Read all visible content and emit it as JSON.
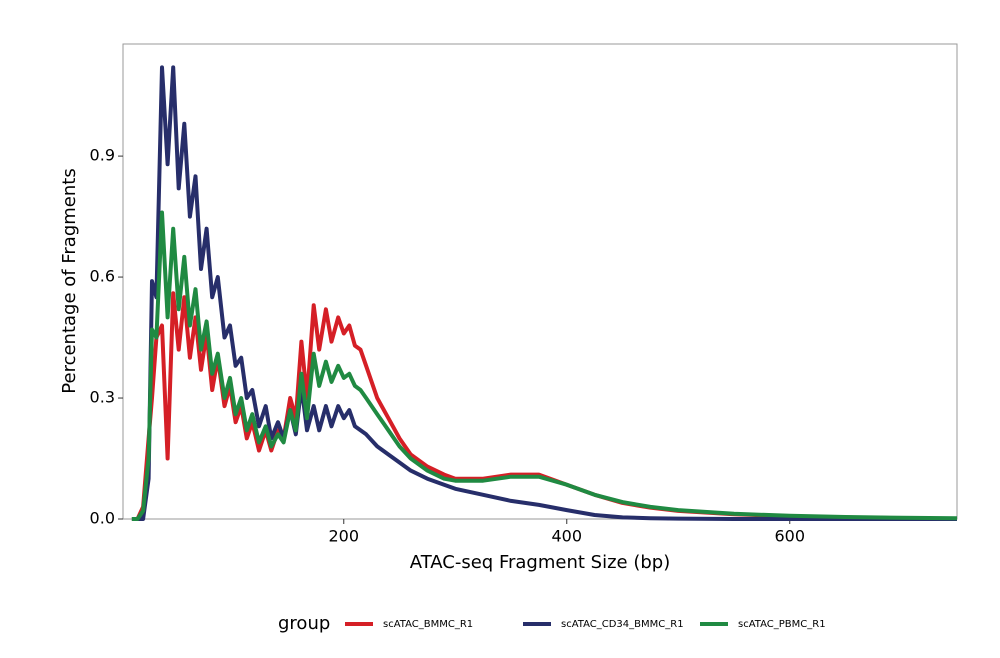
{
  "chart_data": {
    "type": "line",
    "xlabel": "ATAC-seq Fragment Size (bp)",
    "ylabel": "Percentage of Fragments",
    "legend_title": "group",
    "legend": "bottom",
    "xlim": [
      2,
      750
    ],
    "ylim": [
      0,
      1.178
    ],
    "xticks": [
      200,
      400,
      600
    ],
    "yticks": [
      {
        "value": 0,
        "label": "0.0"
      },
      0.3,
      0.6,
      0.9
    ],
    "x": [
      10,
      15,
      20,
      25,
      28,
      32,
      37,
      42,
      47,
      52,
      57,
      62,
      67,
      72,
      77,
      82,
      87,
      93,
      98,
      103,
      108,
      113,
      118,
      124,
      130,
      135,
      141,
      146,
      152,
      157,
      162,
      167,
      173,
      178,
      184,
      189,
      195,
      200,
      205,
      210,
      215,
      220,
      230,
      240,
      250,
      260,
      275,
      290,
      300,
      325,
      350,
      375,
      400,
      425,
      450,
      475,
      500,
      550,
      600,
      650,
      700,
      750
    ],
    "series": [
      {
        "name": "scATAC_BMMC_R1",
        "color": "#D51F26",
        "values": [
          0,
          0,
          0.03,
          0.2,
          0.3,
          0.45,
          0.48,
          0.15,
          0.56,
          0.42,
          0.55,
          0.4,
          0.5,
          0.37,
          0.46,
          0.32,
          0.4,
          0.28,
          0.33,
          0.24,
          0.28,
          0.2,
          0.24,
          0.17,
          0.22,
          0.17,
          0.22,
          0.2,
          0.3,
          0.25,
          0.44,
          0.3,
          0.53,
          0.42,
          0.52,
          0.44,
          0.5,
          0.46,
          0.48,
          0.43,
          0.42,
          0.38,
          0.3,
          0.25,
          0.2,
          0.16,
          0.13,
          0.11,
          0.1,
          0.1,
          0.11,
          0.11,
          0.085,
          0.06,
          0.04,
          0.028,
          0.02,
          0.012,
          0.007,
          0.004,
          0.002,
          0.001
        ]
      },
      {
        "name": "scATAC_CD34_BMMC_R1",
        "color": "#272E6A",
        "values": [
          0,
          0,
          0,
          0.1,
          0.59,
          0.55,
          1.12,
          0.88,
          1.12,
          0.82,
          0.98,
          0.75,
          0.85,
          0.62,
          0.72,
          0.55,
          0.6,
          0.45,
          0.48,
          0.38,
          0.4,
          0.3,
          0.32,
          0.23,
          0.28,
          0.2,
          0.24,
          0.2,
          0.27,
          0.21,
          0.33,
          0.22,
          0.28,
          0.22,
          0.28,
          0.23,
          0.28,
          0.25,
          0.27,
          0.23,
          0.22,
          0.21,
          0.18,
          0.16,
          0.14,
          0.12,
          0.1,
          0.085,
          0.075,
          0.06,
          0.045,
          0.035,
          0.022,
          0.01,
          0.004,
          0.002,
          0.001,
          0,
          0,
          0,
          0,
          0
        ]
      },
      {
        "name": "scATAC_PBMC_R1",
        "color": "#208A42",
        "values": [
          0,
          0,
          0.02,
          0.15,
          0.47,
          0.45,
          0.76,
          0.5,
          0.72,
          0.52,
          0.65,
          0.48,
          0.57,
          0.42,
          0.49,
          0.36,
          0.41,
          0.3,
          0.35,
          0.26,
          0.3,
          0.22,
          0.26,
          0.19,
          0.23,
          0.18,
          0.21,
          0.19,
          0.27,
          0.22,
          0.36,
          0.25,
          0.41,
          0.33,
          0.39,
          0.34,
          0.38,
          0.35,
          0.36,
          0.33,
          0.32,
          0.3,
          0.26,
          0.22,
          0.18,
          0.15,
          0.12,
          0.1,
          0.095,
          0.095,
          0.105,
          0.105,
          0.085,
          0.06,
          0.042,
          0.03,
          0.022,
          0.013,
          0.008,
          0.005,
          0.003,
          0.002
        ]
      }
    ]
  }
}
